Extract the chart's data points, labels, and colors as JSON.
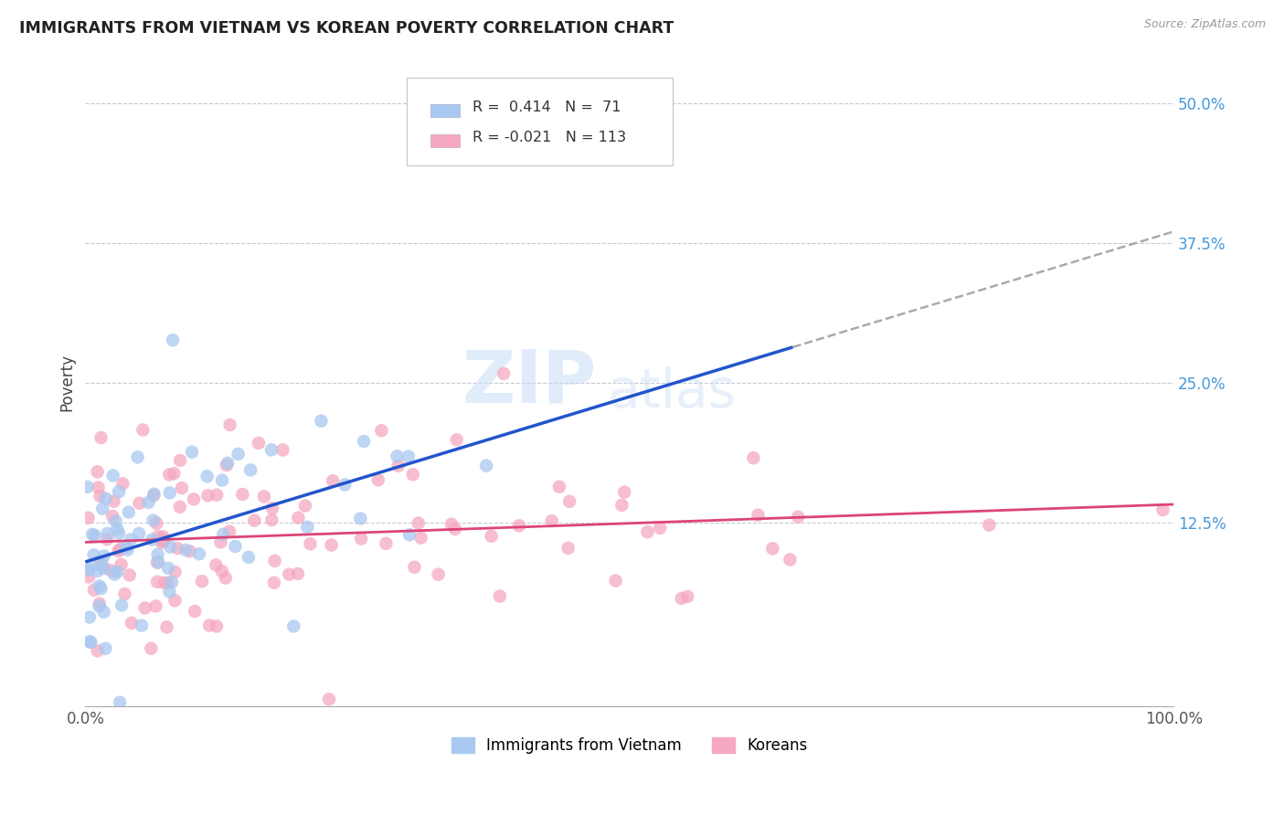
{
  "title": "IMMIGRANTS FROM VIETNAM VS KOREAN POVERTY CORRELATION CHART",
  "source": "Source: ZipAtlas.com",
  "ylabel": "Poverty",
  "xlim": [
    0,
    1.0
  ],
  "ylim": [
    -0.04,
    0.54
  ],
  "yticks": [
    0.125,
    0.25,
    0.375,
    0.5
  ],
  "yticklabels": [
    "12.5%",
    "25.0%",
    "37.5%",
    "50.0%"
  ],
  "xtick_positions": [
    0.0,
    0.25,
    0.5,
    0.75,
    1.0
  ],
  "xticklabels": [
    "0.0%",
    "",
    "",
    "",
    "100.0%"
  ],
  "legend_r_vietnam": "0.414",
  "legend_n_vietnam": "71",
  "legend_r_korean": "-0.021",
  "legend_n_korean": "113",
  "color_vietnam": "#a8c8f0",
  "color_korean": "#f5a8c0",
  "line_color_vietnam": "#2255cc",
  "line_color_korean": "#dd4477",
  "watermark_zip": "ZIP",
  "watermark_atlas": "atlas",
  "background_color": "#ffffff",
  "grid_color": "#c8c8d8",
  "title_color": "#222222",
  "ytick_color": "#4499dd",
  "xtick_color": "#555555",
  "source_color": "#999999"
}
